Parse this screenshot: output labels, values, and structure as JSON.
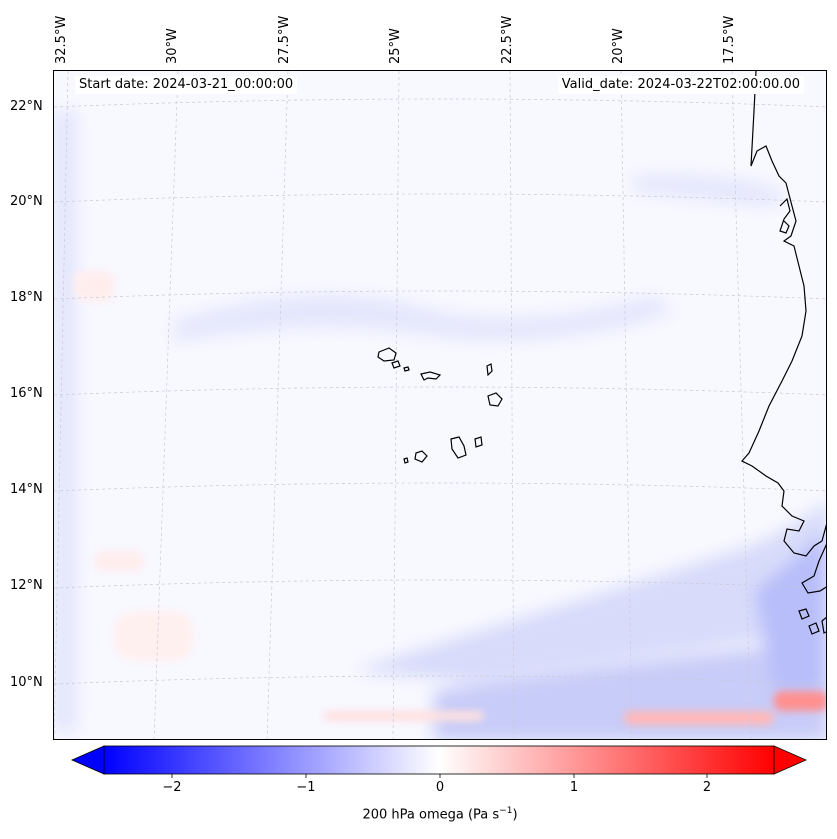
{
  "map": {
    "start_date": "Start date: 2024-03-21_00:00:00",
    "valid_date": "Valid_date: 2024-03-22T02:00:00.00",
    "lon_labels": [
      "32.5°W",
      "30°W",
      "27.5°W",
      "25°W",
      "22.5°W",
      "20°W",
      "17.5°W"
    ],
    "lat_labels": [
      "22°N",
      "20°N",
      "18°N",
      "16°N",
      "14°N",
      "12°N",
      "10°N"
    ],
    "colors": {
      "ocean": "#f8f8ff",
      "coast": "#000000",
      "grid": "#c8c8d8"
    }
  },
  "colorbar": {
    "ticks": [
      "−2",
      "−1",
      "0",
      "1",
      "2"
    ],
    "label_prefix": "200 hPa omega (Pa s",
    "label_exp": "−1",
    "label_suffix": ")",
    "colors": {
      "neg": "#0000ff",
      "zero": "#ffffff",
      "pos": "#ff0000"
    }
  }
}
